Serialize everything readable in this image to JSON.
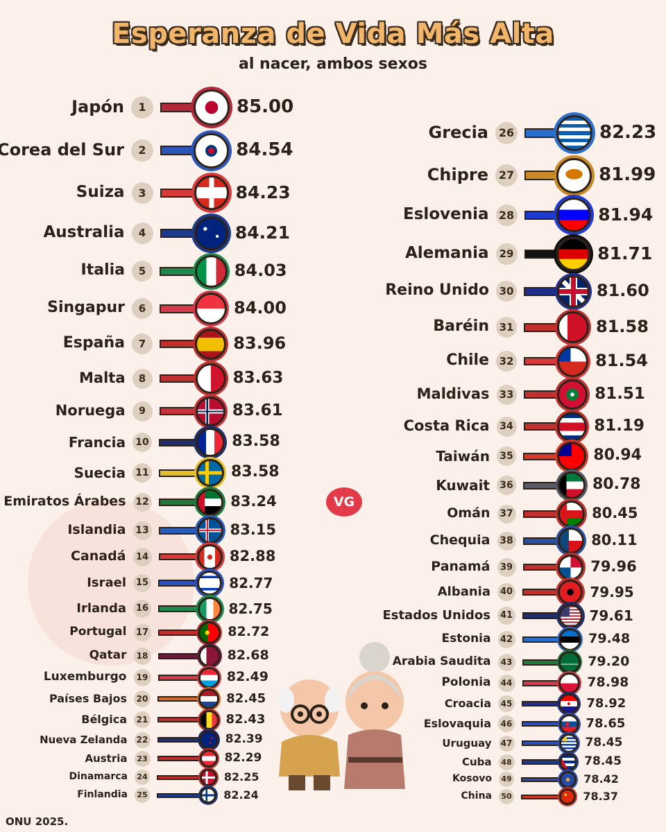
{
  "title": "Esperanza de Vida Más Alta",
  "subtitle": "al nacer, ambos sexos",
  "source": "ONU 2025.",
  "logo": "VG",
  "chart_data": {
    "type": "bar",
    "title": "Esperanza de Vida Más Alta",
    "subtitle": "al nacer, ambos sexos",
    "rows": [
      {
        "rank": "1",
        "country": "Japón",
        "value": "85.00",
        "color": "#b02a3c",
        "flag": "japan"
      },
      {
        "rank": "2",
        "country": "Corea del Sur",
        "value": "84.54",
        "color": "#2b55b8",
        "flag": "korea"
      },
      {
        "rank": "3",
        "country": "Suiza",
        "value": "84.23",
        "color": "#d63a3a",
        "flag": "swiss"
      },
      {
        "rank": "4",
        "country": "Australia",
        "value": "84.21",
        "color": "#1f3a8a",
        "flag": "australia"
      },
      {
        "rank": "5",
        "country": "Italia",
        "value": "84.03",
        "color": "#1f8a4c",
        "flag": "italy"
      },
      {
        "rank": "6",
        "country": "Singapur",
        "value": "84.00",
        "color": "#d63a4a",
        "flag": "singapore"
      },
      {
        "rank": "7",
        "country": "España",
        "value": "83.96",
        "color": "#c0302e",
        "flag": "spain"
      },
      {
        "rank": "8",
        "country": "Malta",
        "value": "83.63",
        "color": "#c0302e",
        "flag": "malta"
      },
      {
        "rank": "9",
        "country": "Noruega",
        "value": "83.61",
        "color": "#c8323a",
        "flag": "norway"
      },
      {
        "rank": "10",
        "country": "Francia",
        "value": "83.58",
        "color": "#1f2f6e",
        "flag": "france"
      },
      {
        "rank": "11",
        "country": "Suecia",
        "value": "83.58",
        "color": "#e6c02a",
        "flag": "sweden"
      },
      {
        "rank": "12",
        "country": "Emiratos Árabes",
        "value": "83.24",
        "color": "#1f7a3c",
        "flag": "uae"
      },
      {
        "rank": "13",
        "country": "Islandia",
        "value": "83.15",
        "color": "#2a5bb8",
        "flag": "iceland"
      },
      {
        "rank": "14",
        "country": "Canadá",
        "value": "82.88",
        "color": "#d63a3a",
        "flag": "canada"
      },
      {
        "rank": "15",
        "country": "Israel",
        "value": "82.77",
        "color": "#2a4fb8",
        "flag": "israel"
      },
      {
        "rank": "16",
        "country": "Irlanda",
        "value": "82.75",
        "color": "#1f8a4c",
        "flag": "ireland"
      },
      {
        "rank": "17",
        "country": "Portugal",
        "value": "82.72",
        "color": "#c0302e",
        "flag": "portugal"
      },
      {
        "rank": "18",
        "country": "Qatar",
        "value": "82.68",
        "color": "#6a1a3a",
        "flag": "qatar"
      },
      {
        "rank": "19",
        "country": "Luxemburgo",
        "value": "82.49",
        "color": "#d63a4a",
        "flag": "luxembourg"
      },
      {
        "rank": "20",
        "country": "Países Bajos",
        "value": "82.45",
        "color": "#d66a2a",
        "flag": "netherlands"
      },
      {
        "rank": "21",
        "country": "Bélgica",
        "value": "82.43",
        "color": "#c0302e",
        "flag": "belgium"
      },
      {
        "rank": "22",
        "country": "Nueva Zelanda",
        "value": "82.39",
        "color": "#1f2f6e",
        "flag": "newzealand"
      },
      {
        "rank": "23",
        "country": "Austria",
        "value": "82.29",
        "color": "#c0302e",
        "flag": "austria"
      },
      {
        "rank": "24",
        "country": "Dinamarca",
        "value": "82.25",
        "color": "#c0302e",
        "flag": "denmark"
      },
      {
        "rank": "25",
        "country": "Finlandia",
        "value": "82.24",
        "color": "#1f3a8a",
        "flag": "finland"
      },
      {
        "rank": "26",
        "country": "Grecia",
        "value": "82.23",
        "color": "#2a6fd0",
        "flag": "greece"
      },
      {
        "rank": "27",
        "country": "Chipre",
        "value": "81.99",
        "color": "#c98a2a",
        "flag": "cyprus"
      },
      {
        "rank": "28",
        "country": "Eslovenia",
        "value": "81.94",
        "color": "#1f3ad0",
        "flag": "slovenia"
      },
      {
        "rank": "29",
        "country": "Alemania",
        "value": "81.71",
        "color": "#111111",
        "flag": "germany"
      },
      {
        "rank": "30",
        "country": "Reino Unido",
        "value": "81.60",
        "color": "#1f2f8a",
        "flag": "uk"
      },
      {
        "rank": "31",
        "country": "Baréin",
        "value": "81.58",
        "color": "#c0302e",
        "flag": "bahrain"
      },
      {
        "rank": "32",
        "country": "Chile",
        "value": "81.54",
        "color": "#d63a3a",
        "flag": "chile"
      },
      {
        "rank": "33",
        "country": "Maldivas",
        "value": "81.51",
        "color": "#c0302e",
        "flag": "maldives"
      },
      {
        "rank": "34",
        "country": "Costa Rica",
        "value": "81.19",
        "color": "#c0302e",
        "flag": "costarica"
      },
      {
        "rank": "35",
        "country": "Taiwán",
        "value": "80.94",
        "color": "#d63a2a",
        "flag": "taiwan"
      },
      {
        "rank": "36",
        "country": "Kuwait",
        "value": "80.78",
        "color": "#555a66",
        "flag": "kuwait"
      },
      {
        "rank": "37",
        "country": "Omán",
        "value": "80.45",
        "color": "#c0302e",
        "flag": "oman"
      },
      {
        "rank": "38",
        "country": "Chequia",
        "value": "80.11",
        "color": "#2a4fa0",
        "flag": "czechia"
      },
      {
        "rank": "39",
        "country": "Panamá",
        "value": "79.96",
        "color": "#c0302e",
        "flag": "panama"
      },
      {
        "rank": "40",
        "country": "Albania",
        "value": "79.95",
        "color": "#c0302e",
        "flag": "albania"
      },
      {
        "rank": "41",
        "country": "Estados Unidos",
        "value": "79.61",
        "color": "#1f2f6e",
        "flag": "usa"
      },
      {
        "rank": "42",
        "country": "Estonia",
        "value": "79.48",
        "color": "#2a6fd0",
        "flag": "estonia"
      },
      {
        "rank": "43",
        "country": "Arabia Saudita",
        "value": "79.20",
        "color": "#1f7a3c",
        "flag": "saudi"
      },
      {
        "rank": "44",
        "country": "Polonia",
        "value": "78.98",
        "color": "#d63a4a",
        "flag": "poland"
      },
      {
        "rank": "45",
        "country": "Croacia",
        "value": "78.92",
        "color": "#1f2f8a",
        "flag": "croatia"
      },
      {
        "rank": "46",
        "country": "Eslovaquia",
        "value": "78.65",
        "color": "#2a4fb8",
        "flag": "slovakia"
      },
      {
        "rank": "47",
        "country": "Uruguay",
        "value": "78.45",
        "color": "#2a4fb8",
        "flag": "uruguay"
      },
      {
        "rank": "48",
        "country": "Cuba",
        "value": "78.45",
        "color": "#1f3a8a",
        "flag": "cuba"
      },
      {
        "rank": "49",
        "country": "Kosovo",
        "value": "78.42",
        "color": "#2a4fb8",
        "flag": "kosovo"
      },
      {
        "rank": "50",
        "country": "China",
        "value": "78.37",
        "color": "#d63a2a",
        "flag": "china"
      }
    ]
  }
}
